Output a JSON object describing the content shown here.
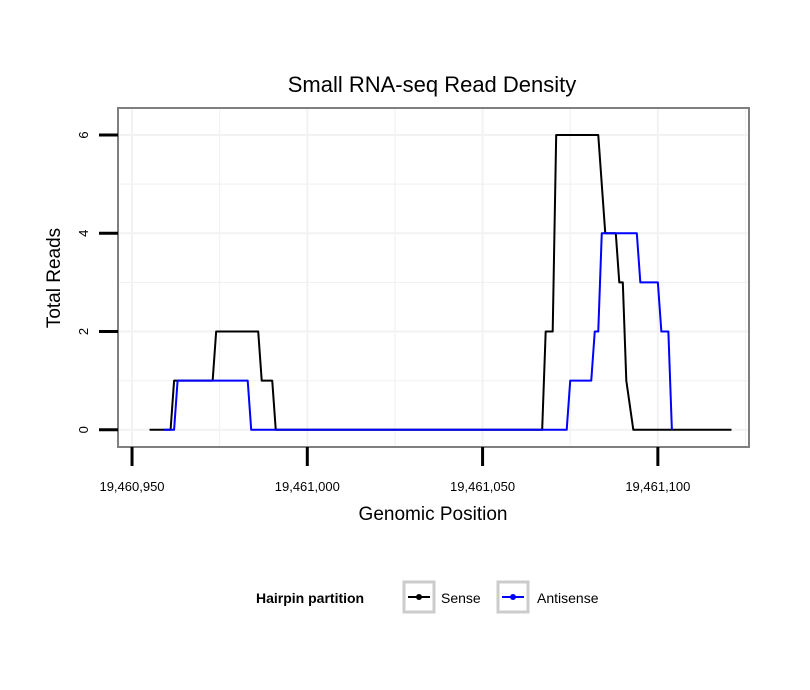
{
  "chart_data": {
    "type": "line",
    "title": "Small RNA-seq Read Density",
    "xlabel": "Genomic Position",
    "ylabel": "Total Reads",
    "xlim": [
      19460946,
      19461126
    ],
    "ylim": [
      -0.35,
      6.55
    ],
    "x_ticks": [
      19460950,
      19461000,
      19461050,
      19461100
    ],
    "x_tick_labels": [
      "19,460,950",
      "19,461,000",
      "19,461,050",
      "19,461,100"
    ],
    "y_ticks": [
      0,
      2,
      4,
      6
    ],
    "y_tick_labels": [
      "0",
      "2",
      "4",
      "6"
    ],
    "grid": true,
    "legend": {
      "title": "Hairpin partition",
      "position": "bottom",
      "entries": [
        "Sense",
        "Antisense"
      ]
    },
    "series": [
      {
        "name": "Sense",
        "color": "#000000",
        "points": [
          [
            19460955,
            0
          ],
          [
            19460961,
            0
          ],
          [
            19460962,
            1
          ],
          [
            19460973,
            1
          ],
          [
            19460974,
            2
          ],
          [
            19460986,
            2
          ],
          [
            19460987,
            1
          ],
          [
            19460990,
            1
          ],
          [
            19460991,
            0
          ],
          [
            19461067,
            0
          ],
          [
            19461068,
            2
          ],
          [
            19461070,
            2
          ],
          [
            19461071,
            6
          ],
          [
            19461083,
            6
          ],
          [
            19461085,
            4
          ],
          [
            19461088,
            4
          ],
          [
            19461089,
            3
          ],
          [
            19461090,
            3
          ],
          [
            19461091,
            1
          ],
          [
            19461093,
            0
          ],
          [
            19461121,
            0
          ]
        ]
      },
      {
        "name": "Antisense",
        "color": "#0000ff",
        "points": [
          [
            19460959,
            0
          ],
          [
            19460962,
            0
          ],
          [
            19460963,
            1
          ],
          [
            19460983,
            1
          ],
          [
            19460984,
            0
          ],
          [
            19461074,
            0
          ],
          [
            19461075,
            1
          ],
          [
            19461081,
            1
          ],
          [
            19461082,
            2
          ],
          [
            19461083,
            2
          ],
          [
            19461084,
            4
          ],
          [
            19461094,
            4
          ],
          [
            19461095,
            3
          ],
          [
            19461100,
            3
          ],
          [
            19461101,
            2
          ],
          [
            19461103,
            2
          ],
          [
            19461104,
            0
          ]
        ]
      }
    ]
  }
}
